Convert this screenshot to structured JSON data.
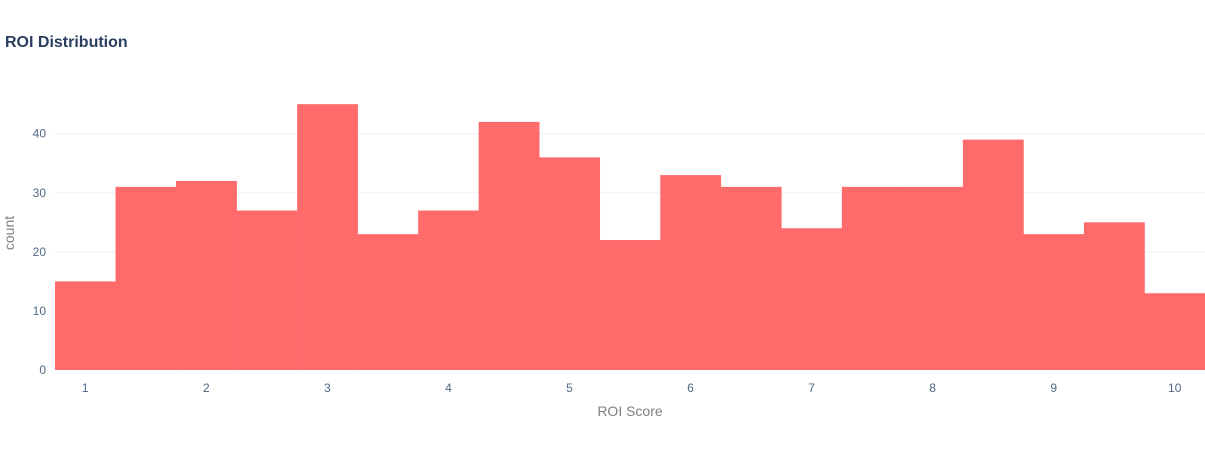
{
  "chart_data": {
    "type": "bar",
    "title": "ROI Distribution",
    "xlabel": "ROI Score",
    "ylabel": "count",
    "bin_start": 0.75,
    "bin_width": 0.5,
    "values": [
      15,
      31,
      32,
      27,
      45,
      23,
      27,
      42,
      36,
      22,
      33,
      31,
      24,
      31,
      31,
      39,
      23,
      25,
      13
    ],
    "xlim": [
      0.75,
      10.25
    ],
    "ylim": [
      0,
      47.4
    ],
    "x_ticks": [
      1,
      2,
      3,
      4,
      5,
      6,
      7,
      8,
      9,
      10
    ],
    "y_ticks": [
      0,
      10,
      20,
      30,
      40
    ],
    "bar_color": "#ff6b6b",
    "grid_color": "#ebf0f8",
    "grid": true,
    "legend": "none"
  }
}
